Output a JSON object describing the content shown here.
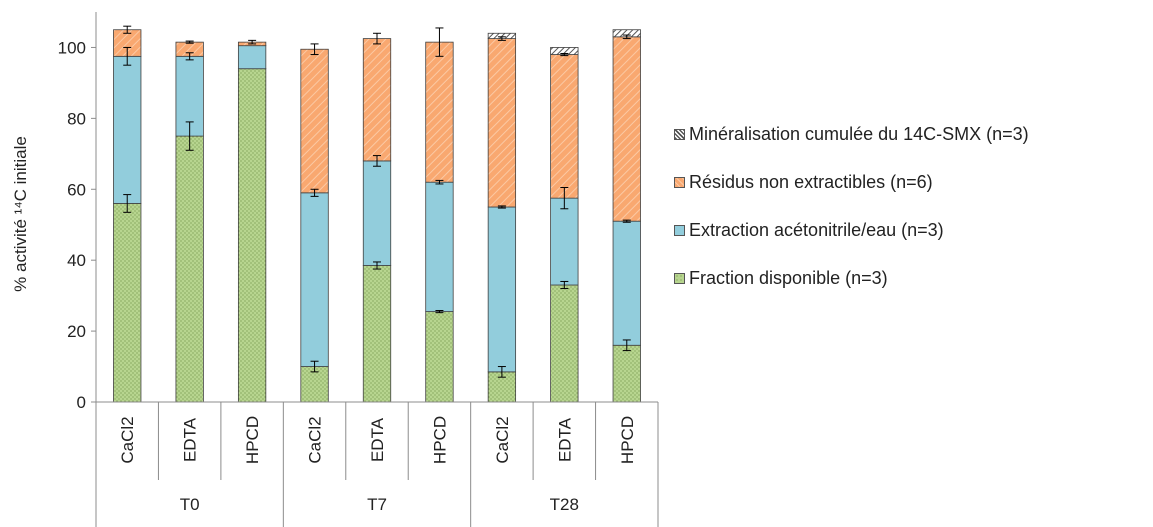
{
  "chart_data": {
    "type": "bar",
    "stacked": true,
    "ylabel": "% activité ¹⁴C initiale",
    "ylim": [
      0,
      110
    ],
    "yticks": [
      0,
      20,
      40,
      60,
      80,
      100
    ],
    "categories": [
      "CaCl2",
      "EDTA",
      "HPCD",
      "CaCl2",
      "EDTA",
      "HPCD",
      "CaCl2",
      "EDTA",
      "HPCD"
    ],
    "groups": [
      {
        "label": "T0",
        "count": 3
      },
      {
        "label": "T7",
        "count": 3
      },
      {
        "label": "T28",
        "count": 3
      }
    ],
    "series": [
      {
        "name": "Fraction disponible (n=3)",
        "color": "#b7d58f",
        "pattern": "dots",
        "values": [
          56,
          75,
          94,
          10,
          38.5,
          25.5,
          8.5,
          33,
          16
        ],
        "errors": [
          2.5,
          4,
          0,
          1.5,
          1,
          0.3,
          1.5,
          1,
          1.5
        ]
      },
      {
        "name": "Extraction acétonitrile/eau (n=3)",
        "color": "#92cddc",
        "pattern": "solid",
        "values": [
          41.5,
          22.5,
          6.5,
          49,
          29.5,
          36.5,
          46.5,
          24.5,
          35
        ],
        "errors": [
          2.5,
          1,
          0,
          1,
          1.5,
          0.5,
          0.3,
          3,
          0.3
        ]
      },
      {
        "name": "Résidus non extractibles (n=6)",
        "color": "#f9a870",
        "pattern": "stripes",
        "values": [
          7.5,
          4,
          1,
          40.5,
          34.5,
          39.5,
          47.5,
          40.5,
          52
        ],
        "errors": [
          1,
          0.3,
          0.5,
          1.5,
          1.5,
          4,
          0.5,
          0.3,
          0.5
        ]
      },
      {
        "name": "Minéralisation cumulée du 14C-SMX (n=3)",
        "color": "#7f7f7f",
        "pattern": "hatch",
        "values": [
          0,
          0,
          0,
          0,
          0,
          0,
          1.5,
          2,
          2
        ],
        "errors": [
          0,
          0,
          0,
          0,
          0,
          0,
          0,
          0,
          0
        ]
      }
    ],
    "legend_position": "right",
    "grid": false
  }
}
